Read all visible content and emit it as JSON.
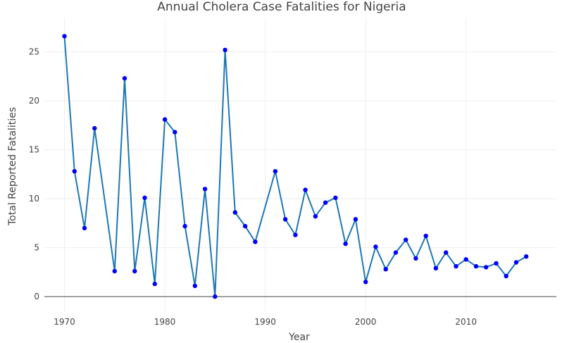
{
  "chart_data": {
    "type": "line",
    "title": "Annual Cholera Case Fatalities for Nigeria",
    "xlabel": "Year",
    "ylabel": "Total Reported Fatalities",
    "xlim": [
      1968,
      2019
    ],
    "ylim": [
      -1.5,
      28.5
    ],
    "xticks": [
      1970,
      1980,
      1990,
      2000,
      2010
    ],
    "yticks": [
      0,
      5,
      10,
      15,
      20,
      25
    ],
    "grid": true,
    "legend": "none",
    "colors": {
      "line": "#1f77b4",
      "marker": "#0000ff",
      "grid": "#eeeeee",
      "zeroline": "#444444",
      "text": "#444444"
    },
    "series": [
      {
        "x": [
          1970,
          1971,
          1972,
          1973,
          1975,
          1976,
          1977,
          1978,
          1979,
          1980,
          1981,
          1982,
          1983,
          1984,
          1985,
          1986,
          1987,
          1988,
          1989,
          1991,
          1992,
          1993,
          1994,
          1995,
          1996,
          1997,
          1998,
          1999,
          2000,
          2001,
          2002,
          2003,
          2004,
          2005,
          2006,
          2007,
          2008,
          2009,
          2010,
          2011,
          2012,
          2013,
          2014,
          2015,
          2016
        ],
        "values": [
          26.6,
          12.8,
          7.0,
          17.2,
          2.6,
          22.3,
          2.6,
          10.1,
          1.3,
          18.1,
          16.8,
          7.2,
          1.1,
          11.0,
          0.0,
          25.2,
          8.6,
          7.2,
          5.6,
          12.8,
          7.9,
          6.3,
          10.9,
          8.2,
          9.6,
          10.1,
          5.4,
          7.9,
          1.5,
          5.1,
          2.8,
          4.5,
          5.8,
          3.9,
          6.2,
          2.9,
          4.5,
          3.1,
          3.8,
          3.1,
          3.0,
          3.4,
          2.1,
          3.5,
          4.1
        ]
      }
    ]
  }
}
